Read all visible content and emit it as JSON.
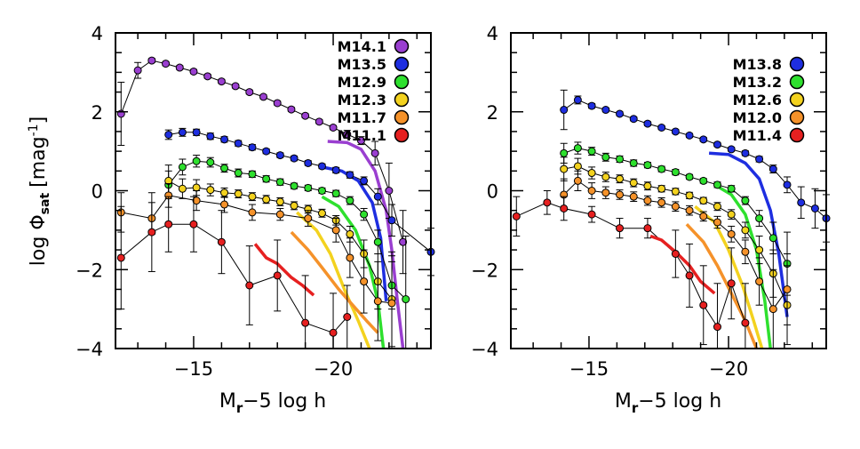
{
  "chart_data": [
    {
      "type": "line",
      "panel": "left",
      "xlabel_main": "M",
      "xlabel_sub": "r",
      "xlabel_rest": "−5 log h",
      "ylabel_pre": "log Φ",
      "ylabel_sub": "sat",
      "ylabel_unit": "[mag",
      "ylabel_sup": "-1",
      "ylabel_close": "]",
      "xlim": [
        -12.2,
        -23.5
      ],
      "ylim": [
        -4,
        4
      ],
      "xticks": [
        -15,
        -20
      ],
      "xtick_labels": [
        "−15",
        "−20"
      ],
      "yticks": [
        -4,
        -2,
        0,
        2,
        4
      ],
      "ytick_labels": [
        "−4",
        "−2",
        "0",
        "2",
        "4"
      ],
      "series": [
        {
          "name": "M14.1",
          "color": "#9a3fd0",
          "x": [
            -12.4,
            -13.0,
            -13.5,
            -14.0,
            -14.5,
            -15.0,
            -15.5,
            -16.0,
            -16.5,
            -17.0,
            -17.5,
            -18.0,
            -18.5,
            -19.0,
            -19.5,
            -20.0,
            -20.5,
            -21.0,
            -21.5,
            -22.0,
            -22.5
          ],
          "y": [
            1.95,
            3.05,
            3.3,
            3.22,
            3.12,
            3.02,
            2.9,
            2.77,
            2.65,
            2.5,
            2.38,
            2.22,
            2.06,
            1.9,
            1.75,
            1.6,
            1.43,
            1.27,
            0.95,
            0.0,
            -1.3
          ],
          "err": [
            0.8,
            0.2,
            0.05,
            0.05,
            0.05,
            0.05,
            0.05,
            0.05,
            0.05,
            0.05,
            0.05,
            0.05,
            0.05,
            0.05,
            0.05,
            0.05,
            0.1,
            0.1,
            0.3,
            0.7,
            0.8
          ],
          "model_x": [
            -19.8,
            -20.5,
            -21.0,
            -21.5,
            -21.9,
            -22.1,
            -22.3,
            -22.5
          ],
          "model_y": [
            1.25,
            1.22,
            1.05,
            0.5,
            -0.5,
            -1.5,
            -2.8,
            -4.0
          ]
        },
        {
          "name": "M13.5",
          "color": "#1e2ee0",
          "x": [
            -14.1,
            -14.6,
            -15.1,
            -15.6,
            -16.1,
            -16.6,
            -17.1,
            -17.6,
            -18.1,
            -18.6,
            -19.1,
            -19.6,
            -20.1,
            -20.6,
            -21.1,
            -21.6,
            -22.1,
            -23.5
          ],
          "y": [
            1.42,
            1.48,
            1.48,
            1.38,
            1.3,
            1.2,
            1.1,
            1.0,
            0.9,
            0.82,
            0.7,
            0.62,
            0.52,
            0.4,
            0.25,
            -0.15,
            -0.75,
            -1.55
          ],
          "err": [
            0.12,
            0.1,
            0.08,
            0.08,
            0.07,
            0.07,
            0.07,
            0.06,
            0.06,
            0.06,
            0.06,
            0.06,
            0.07,
            0.08,
            0.1,
            0.2,
            0.4,
            0.6
          ],
          "model_x": [
            -19.6,
            -20.3,
            -20.9,
            -21.4,
            -21.7,
            -21.9
          ],
          "model_y": [
            0.6,
            0.5,
            0.25,
            -0.3,
            -1.2,
            -2.8
          ]
        },
        {
          "name": "M12.9",
          "color": "#2ee02e",
          "x": [
            -14.1,
            -14.6,
            -15.1,
            -15.6,
            -16.1,
            -16.6,
            -17.1,
            -17.6,
            -18.1,
            -18.6,
            -19.1,
            -19.6,
            -20.1,
            -20.6,
            -21.1,
            -21.6,
            -22.1,
            -22.6
          ],
          "y": [
            0.15,
            0.6,
            0.75,
            0.72,
            0.57,
            0.45,
            0.42,
            0.3,
            0.22,
            0.12,
            0.07,
            0.0,
            -0.07,
            -0.25,
            -0.6,
            -1.3,
            -2.4,
            -2.75
          ],
          "err": [
            0.35,
            0.2,
            0.15,
            0.12,
            0.1,
            0.1,
            0.08,
            0.08,
            0.08,
            0.07,
            0.07,
            0.07,
            0.08,
            0.1,
            0.15,
            0.3,
            0.6,
            1.6
          ],
          "model_x": [
            -19.6,
            -20.2,
            -20.8,
            -21.3,
            -21.6,
            -21.8
          ],
          "model_y": [
            -0.15,
            -0.4,
            -1.0,
            -1.9,
            -2.8,
            -4.0
          ]
        },
        {
          "name": "M12.3",
          "color": "#f3d21f",
          "x": [
            -14.1,
            -14.6,
            -15.1,
            -15.6,
            -16.1,
            -16.6,
            -17.1,
            -17.6,
            -18.1,
            -18.6,
            -19.1,
            -19.6,
            -20.1,
            -20.6,
            -21.1,
            -21.6,
            -22.1
          ],
          "y": [
            0.25,
            0.05,
            0.08,
            0.02,
            -0.05,
            -0.08,
            -0.15,
            -0.22,
            -0.28,
            -0.38,
            -0.47,
            -0.57,
            -0.75,
            -1.1,
            -1.6,
            -2.3,
            -2.75
          ],
          "err": [
            0.4,
            0.25,
            0.2,
            0.15,
            0.12,
            0.1,
            0.1,
            0.1,
            0.1,
            0.1,
            0.1,
            0.1,
            0.12,
            0.2,
            0.35,
            0.7,
            1.2
          ],
          "model_x": [
            -18.7,
            -19.4,
            -19.9,
            -20.4,
            -20.9,
            -21.3
          ],
          "model_y": [
            -0.55,
            -1.0,
            -1.6,
            -2.5,
            -3.3,
            -4.0
          ]
        },
        {
          "name": "M11.7",
          "color": "#f5922a",
          "x": [
            -12.4,
            -13.5,
            -14.1,
            -15.1,
            -16.1,
            -17.1,
            -18.1,
            -19.1,
            -20.1,
            -20.6,
            -21.1,
            -21.6,
            -22.1
          ],
          "y": [
            -0.55,
            -0.7,
            -0.12,
            -0.25,
            -0.35,
            -0.55,
            -0.6,
            -0.7,
            -1.0,
            -1.7,
            -2.3,
            -2.8,
            -2.85
          ],
          "err": [
            0.5,
            0.4,
            0.3,
            0.25,
            0.2,
            0.2,
            0.15,
            0.2,
            0.3,
            0.5,
            0.8,
            1.0,
            1.2
          ],
          "model_x": [
            -18.5,
            -19.1,
            -19.6,
            -20.2,
            -20.7,
            -21.2,
            -21.6
          ],
          "model_y": [
            -1.05,
            -1.5,
            -1.95,
            -2.5,
            -2.9,
            -3.3,
            -3.6
          ]
        },
        {
          "name": "M11.1",
          "color": "#e62020",
          "x": [
            -12.4,
            -13.5,
            -14.1,
            -15.0,
            -16.0,
            -17.0,
            -18.0,
            -19.0,
            -20.0,
            -20.5
          ],
          "y": [
            -1.7,
            -1.05,
            -0.85,
            -0.85,
            -1.3,
            -2.4,
            -2.15,
            -3.35,
            -3.6,
            -3.2
          ],
          "err": [
            1.3,
            1.0,
            0.7,
            0.7,
            0.8,
            1.0,
            0.9,
            1.2,
            1.0,
            0.8
          ],
          "model_x": [
            -17.2,
            -17.6,
            -18.0,
            -18.5,
            -18.9,
            -19.3
          ],
          "model_y": [
            -1.35,
            -1.7,
            -1.85,
            -2.2,
            -2.4,
            -2.65
          ]
        }
      ]
    },
    {
      "type": "line",
      "panel": "right",
      "xlabel_main": "M",
      "xlabel_sub": "r",
      "xlabel_rest": "−5 log h",
      "xlim": [
        -12.2,
        -23.5
      ],
      "ylim": [
        -4,
        4
      ],
      "xticks": [
        -15,
        -20
      ],
      "xtick_labels": [
        "−15",
        "−20"
      ],
      "yticks": [
        -4,
        -2,
        0,
        2,
        4
      ],
      "ytick_labels": [
        "−4",
        "−2",
        "0",
        "2",
        "4"
      ],
      "series": [
        {
          "name": "M13.8",
          "color": "#1e2ee0",
          "x": [
            -14.1,
            -14.6,
            -15.1,
            -15.6,
            -16.1,
            -16.6,
            -17.1,
            -17.6,
            -18.1,
            -18.6,
            -19.1,
            -19.6,
            -20.1,
            -20.6,
            -21.1,
            -21.6,
            -22.1,
            -22.6,
            -23.1,
            -23.5
          ],
          "y": [
            2.05,
            2.3,
            2.15,
            2.05,
            1.95,
            1.82,
            1.7,
            1.6,
            1.5,
            1.4,
            1.3,
            1.17,
            1.05,
            0.95,
            0.8,
            0.55,
            0.15,
            -0.3,
            -0.45,
            -0.7
          ],
          "err": [
            0.5,
            0.1,
            0.06,
            0.05,
            0.05,
            0.05,
            0.05,
            0.05,
            0.05,
            0.05,
            0.05,
            0.05,
            0.05,
            0.06,
            0.07,
            0.1,
            0.2,
            0.4,
            0.5,
            0.6
          ],
          "model_x": [
            -19.3,
            -20.0,
            -20.6,
            -21.1,
            -21.5,
            -21.8,
            -22.1
          ],
          "model_y": [
            0.95,
            0.92,
            0.7,
            0.3,
            -0.5,
            -1.6,
            -3.2
          ]
        },
        {
          "name": "M13.2",
          "color": "#2ee02e",
          "x": [
            -14.1,
            -14.6,
            -15.1,
            -15.6,
            -16.1,
            -16.6,
            -17.1,
            -17.6,
            -18.1,
            -18.6,
            -19.1,
            -19.6,
            -20.1,
            -20.6,
            -21.1,
            -21.6,
            -22.1
          ],
          "y": [
            0.95,
            1.08,
            1.0,
            0.85,
            0.8,
            0.7,
            0.65,
            0.55,
            0.47,
            0.35,
            0.25,
            0.15,
            0.05,
            -0.25,
            -0.7,
            -1.2,
            -1.85
          ],
          "err": [
            0.25,
            0.15,
            0.1,
            0.1,
            0.08,
            0.08,
            0.07,
            0.07,
            0.07,
            0.06,
            0.06,
            0.07,
            0.08,
            0.1,
            0.2,
            0.4,
            0.8
          ],
          "model_x": [
            -19.5,
            -20.1,
            -20.6,
            -21.0,
            -21.3,
            -21.5
          ],
          "model_y": [
            0.15,
            -0.1,
            -0.6,
            -1.5,
            -2.8,
            -4.0
          ]
        },
        {
          "name": "M12.6",
          "color": "#f3d21f",
          "x": [
            -14.1,
            -14.6,
            -15.1,
            -15.6,
            -16.1,
            -16.6,
            -17.1,
            -17.6,
            -18.1,
            -18.6,
            -19.1,
            -19.6,
            -20.1,
            -20.6,
            -21.1,
            -21.6,
            -22.1
          ],
          "y": [
            0.55,
            0.62,
            0.45,
            0.35,
            0.3,
            0.2,
            0.12,
            0.05,
            -0.02,
            -0.12,
            -0.25,
            -0.4,
            -0.6,
            -1.0,
            -1.5,
            -2.1,
            -2.9
          ],
          "err": [
            0.3,
            0.2,
            0.15,
            0.12,
            0.1,
            0.1,
            0.1,
            0.08,
            0.08,
            0.08,
            0.08,
            0.1,
            0.12,
            0.2,
            0.35,
            0.6,
            1.0
          ],
          "model_x": [
            -18.8,
            -19.5,
            -20.0,
            -20.5,
            -20.9,
            -21.2
          ],
          "model_y": [
            -0.4,
            -0.8,
            -1.5,
            -2.4,
            -3.3,
            -4.0
          ]
        },
        {
          "name": "M12.0",
          "color": "#f5922a",
          "x": [
            -14.1,
            -14.6,
            -15.1,
            -15.6,
            -16.1,
            -16.6,
            -17.1,
            -17.6,
            -18.1,
            -18.6,
            -19.1,
            -19.6,
            -20.1,
            -20.6,
            -21.1,
            -21.6,
            -22.1
          ],
          "y": [
            -0.1,
            0.25,
            0.0,
            -0.05,
            -0.1,
            -0.15,
            -0.25,
            -0.3,
            -0.4,
            -0.5,
            -0.65,
            -0.8,
            -1.1,
            -1.55,
            -2.3,
            -3.0,
            -2.5
          ],
          "err": [
            0.4,
            0.25,
            0.2,
            0.15,
            0.12,
            0.12,
            0.12,
            0.12,
            0.12,
            0.12,
            0.12,
            0.15,
            0.2,
            0.3,
            0.6,
            1.0,
            0.9
          ],
          "model_x": [
            -18.5,
            -19.1,
            -19.6,
            -20.1,
            -20.6,
            -21.0
          ],
          "model_y": [
            -0.85,
            -1.3,
            -1.9,
            -2.6,
            -3.3,
            -4.0
          ]
        },
        {
          "name": "M11.4",
          "color": "#e62020",
          "x": [
            -12.4,
            -13.5,
            -14.1,
            -15.1,
            -16.1,
            -17.1,
            -18.1,
            -18.6,
            -19.1,
            -19.6,
            -20.1,
            -20.6
          ],
          "y": [
            -0.65,
            -0.3,
            -0.45,
            -0.6,
            -0.95,
            -0.95,
            -1.6,
            -2.15,
            -2.9,
            -3.45,
            -2.35,
            -3.35
          ],
          "err": [
            0.5,
            0.3,
            0.3,
            0.2,
            0.25,
            0.25,
            0.6,
            0.8,
            1.0,
            1.1,
            0.9,
            1.0
          ],
          "model_x": [
            -17.2,
            -17.6,
            -18.1,
            -18.6,
            -19.0,
            -19.5
          ],
          "model_y": [
            -1.15,
            -1.25,
            -1.55,
            -1.9,
            -2.3,
            -2.6
          ]
        }
      ]
    }
  ]
}
